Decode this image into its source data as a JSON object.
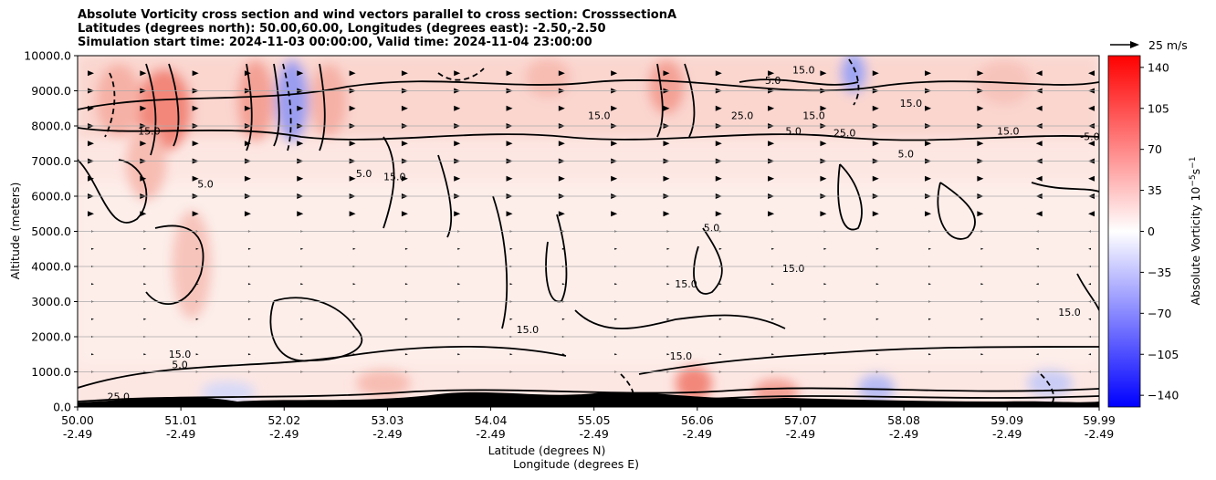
{
  "title": {
    "line1": "Absolute Vorticity cross section and wind vectors parallel to cross section: CrosssectionA",
    "line2": "Latitudes (degrees north): 50.00,60.00, Longitudes (degrees east): -2.50,-2.50",
    "line3": "Simulation start time: 2024-11-03 00:00:00, Valid time: 2024-11-04 23:00:00"
  },
  "quiver_key": {
    "label": "25 m/s"
  },
  "chart_data": {
    "type": "heatmap",
    "title": "Absolute Vorticity cross section and wind vectors parallel to cross section: CrosssectionA",
    "xlabel_top": "Latitude (degrees N)",
    "xlabel_bottom": "Longitude (degrees E)",
    "ylabel": "Altitude (meters)",
    "colorbar_label": "Absolute Vorticity 10",
    "colorbar_label_exp": "−5",
    "colorbar_label_unit": "s",
    "colorbar_label_unit_exp": "−1",
    "x_ticks": [
      {
        "lat": "50.00",
        "lon": "-2.49"
      },
      {
        "lat": "51.01",
        "lon": "-2.49"
      },
      {
        "lat": "52.02",
        "lon": "-2.49"
      },
      {
        "lat": "53.03",
        "lon": "-2.49"
      },
      {
        "lat": "54.04",
        "lon": "-2.49"
      },
      {
        "lat": "55.05",
        "lon": "-2.49"
      },
      {
        "lat": "56.06",
        "lon": "-2.49"
      },
      {
        "lat": "57.07",
        "lon": "-2.49"
      },
      {
        "lat": "58.08",
        "lon": "-2.49"
      },
      {
        "lat": "59.09",
        "lon": "-2.49"
      },
      {
        "lat": "59.99",
        "lon": "-2.49"
      }
    ],
    "y_ticks": [
      "0.0",
      "1000.0",
      "2000.0",
      "3000.0",
      "4000.0",
      "5000.0",
      "6000.0",
      "7000.0",
      "8000.0",
      "9000.0",
      "10000.0"
    ],
    "ylim": [
      0,
      10000
    ],
    "xlim": [
      50.0,
      59.99
    ],
    "grid": "horizontal",
    "colorbar_ticks": [
      "140",
      "105",
      "70",
      "35",
      "0",
      "−35",
      "−70",
      "−105",
      "−140"
    ],
    "colorbar_range": [
      -150,
      150
    ],
    "colormap": [
      "#0000ff",
      "#ffffff",
      "#ff0000"
    ],
    "contour_levels": [
      "5.0",
      "15.0",
      "25.0",
      "-5.0"
    ],
    "contour_labels": [
      {
        "text": "5.0",
        "lat": 51.25,
        "alt": 6250
      },
      {
        "text": "15.0",
        "lat": 57.0,
        "alt": 3850
      },
      {
        "text": "5.0",
        "lat": 56.2,
        "alt": 5000
      },
      {
        "text": "15.0",
        "lat": 55.95,
        "alt": 3400
      },
      {
        "text": "15.0",
        "lat": 53.1,
        "alt": 6450
      },
      {
        "text": "15.0",
        "lat": 54.4,
        "alt": 2100
      },
      {
        "text": "15.0",
        "lat": 55.9,
        "alt": 1350
      },
      {
        "text": "5.0",
        "lat": 52.8,
        "alt": 6550
      },
      {
        "text": "15.0",
        "lat": 59.1,
        "alt": 7750
      },
      {
        "text": "-5.0",
        "lat": 59.9,
        "alt": 7600
      },
      {
        "text": "5.0",
        "lat": 58.1,
        "alt": 7100
      },
      {
        "text": "25.0",
        "lat": 57.5,
        "alt": 7700
      },
      {
        "text": "15.0",
        "lat": 57.2,
        "alt": 8200
      },
      {
        "text": "5.0",
        "lat": 57.0,
        "alt": 7750
      },
      {
        "text": "15.0",
        "lat": 55.1,
        "alt": 8200
      },
      {
        "text": "25.0",
        "lat": 56.5,
        "alt": 8200
      },
      {
        "text": "5.0",
        "lat": 56.8,
        "alt": 9200
      },
      {
        "text": "15.0",
        "lat": 57.1,
        "alt": 9500
      },
      {
        "text": "15.0",
        "lat": 58.15,
        "alt": 8550
      },
      {
        "text": "5.0",
        "lat": 51.0,
        "alt": 1100
      },
      {
        "text": "15.0",
        "lat": 51.0,
        "alt": 1400
      },
      {
        "text": "15.0",
        "lat": 59.7,
        "alt": 2600
      },
      {
        "text": "25.0",
        "lat": 50.4,
        "alt": 200
      },
      {
        "text": "15.0",
        "lat": 50.7,
        "alt": 7750
      }
    ],
    "wind_vector_rows": [
      1000,
      1500,
      2000,
      2500,
      3000,
      3500,
      4000,
      4500,
      5000,
      5500,
      6000,
      6500,
      7000,
      7500,
      8000,
      8500,
      9000,
      9500
    ]
  }
}
